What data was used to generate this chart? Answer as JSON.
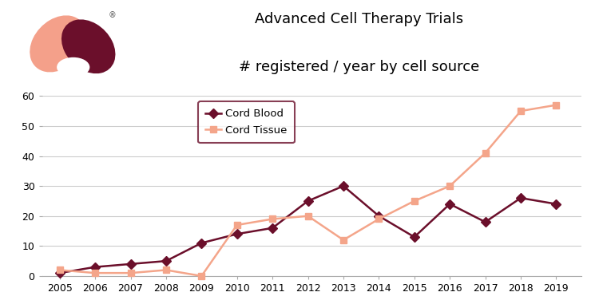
{
  "years": [
    2005,
    2006,
    2007,
    2008,
    2009,
    2010,
    2011,
    2012,
    2013,
    2014,
    2015,
    2016,
    2017,
    2018,
    2019
  ],
  "cord_blood": [
    1,
    3,
    4,
    5,
    11,
    14,
    16,
    25,
    30,
    20,
    13,
    24,
    18,
    26,
    24
  ],
  "cord_tissue": [
    2,
    1,
    1,
    2,
    0,
    17,
    19,
    20,
    12,
    19,
    25,
    30,
    41,
    55,
    57
  ],
  "cord_blood_color": "#6B0F2B",
  "cord_tissue_color": "#F4A58A",
  "title_line1": "Advanced Cell Therapy Trials",
  "title_line2": "# registered / year by cell source",
  "legend_label_blood": "Cord Blood",
  "legend_label_tissue": "Cord Tissue",
  "ylim": [
    0,
    60
  ],
  "yticks": [
    0,
    10,
    20,
    30,
    40,
    50,
    60
  ],
  "grid_color": "#cccccc",
  "background_color": "#ffffff",
  "legend_border_color": "#6B0F2B",
  "logo_pink": "#F4A08A",
  "logo_dark": "#6B0F2B",
  "title_fontsize": 13,
  "tick_fontsize": 9
}
